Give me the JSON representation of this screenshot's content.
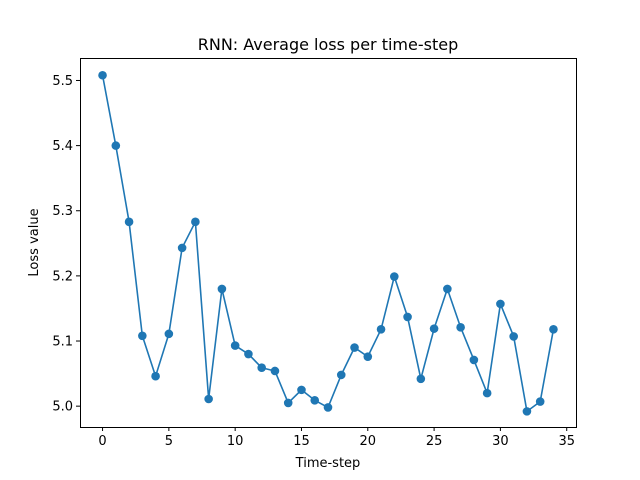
{
  "chart_data": {
    "type": "line",
    "title": "RNN: Average loss per time-step",
    "xlabel": "Time-step",
    "ylabel": "Loss value",
    "xlim": [
      -1.7,
      35.7
    ],
    "ylim": [
      4.968,
      5.5345
    ],
    "xticks": [
      0,
      5,
      10,
      15,
      20,
      25,
      30,
      35
    ],
    "yticks": [
      5.0,
      5.1,
      5.2,
      5.3,
      5.4,
      5.5
    ],
    "ytick_labels": [
      "5.0",
      "5.1",
      "5.2",
      "5.3",
      "5.4",
      "5.5"
    ],
    "grid": false,
    "legend": false,
    "markers": true,
    "color": "#1f77b4",
    "x": [
      0,
      1,
      2,
      3,
      4,
      5,
      6,
      7,
      8,
      9,
      10,
      11,
      12,
      13,
      14,
      15,
      16,
      17,
      18,
      19,
      20,
      21,
      22,
      23,
      24,
      25,
      26,
      27,
      28,
      29,
      30,
      31,
      32,
      33,
      34
    ],
    "values": [
      5.508,
      5.4,
      5.283,
      5.108,
      5.046,
      5.111,
      5.243,
      5.283,
      5.011,
      5.18,
      5.093,
      5.08,
      5.059,
      5.054,
      5.005,
      5.025,
      5.009,
      4.998,
      5.048,
      5.09,
      5.076,
      5.118,
      5.199,
      5.137,
      5.042,
      5.119,
      5.18,
      5.121,
      5.071,
      5.02,
      5.157,
      5.107,
      4.992,
      5.007,
      5.118
    ]
  }
}
